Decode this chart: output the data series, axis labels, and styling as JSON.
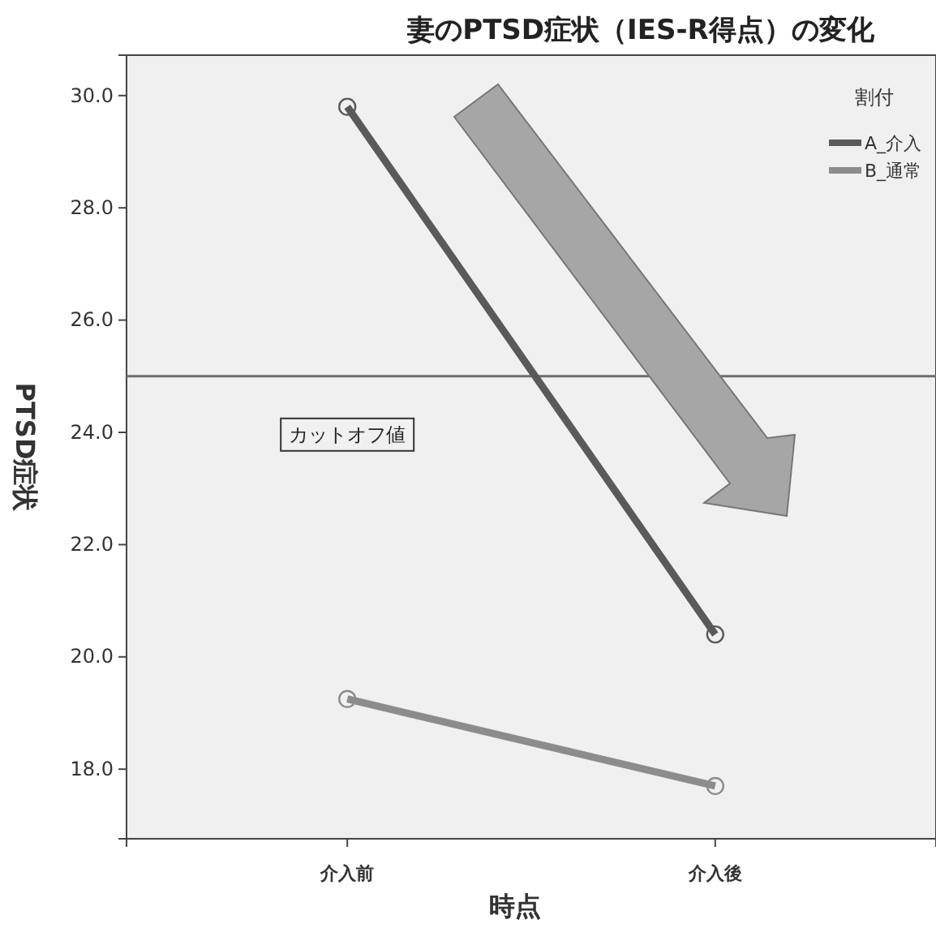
{
  "chart_data": {
    "type": "line",
    "title": "妻のPTSD症状（IES-R得点）の変化",
    "xlabel": "時点",
    "ylabel": "PTSD症状",
    "legend_title": "割付",
    "categories": [
      "介入前",
      "介入後"
    ],
    "series": [
      {
        "name": "A_介入",
        "color": "#5a5a5a",
        "values": [
          29.8,
          20.4
        ]
      },
      {
        "name": "B_通常",
        "color": "#8c8c8c",
        "values": [
          19.25,
          17.7
        ]
      }
    ],
    "ylim": [
      16.76,
      30.72
    ],
    "yticks": [
      {
        "value": 18,
        "label": "18.0"
      },
      {
        "value": 20,
        "label": "20.0"
      },
      {
        "value": 22,
        "label": "22.0"
      },
      {
        "value": 24,
        "label": "24.0"
      },
      {
        "value": 26,
        "label": "26.0"
      },
      {
        "value": 28,
        "label": "28.0"
      },
      {
        "value": 30,
        "label": "30.0"
      }
    ],
    "ref_lines": [
      {
        "axis": "y",
        "value": 25,
        "label": "カットオフ値",
        "color": "#6e6e6e"
      }
    ],
    "legend": "top right",
    "marker": "circle",
    "grid": false
  }
}
